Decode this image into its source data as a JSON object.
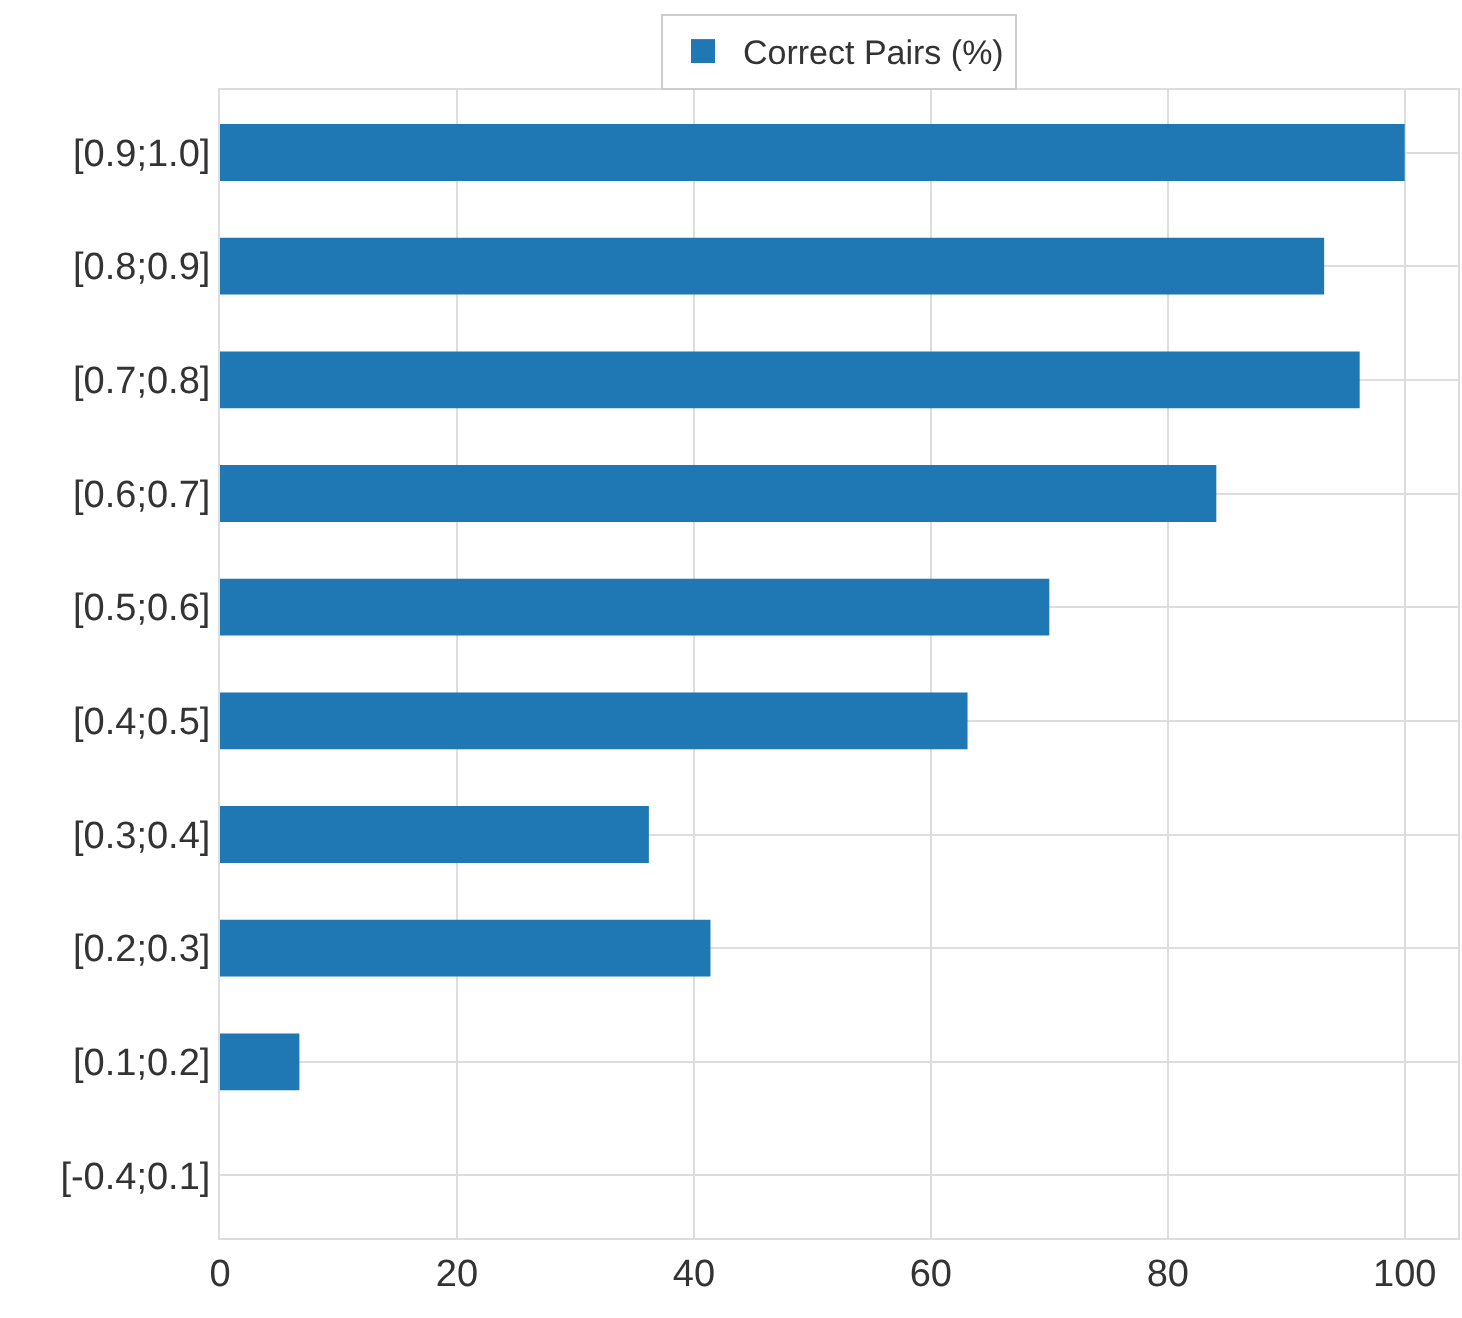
{
  "chart_data": {
    "type": "bar",
    "orientation": "horizontal",
    "categories": [
      "[0.9;1.0]",
      "[0.8;0.9]",
      "[0.7;0.8]",
      "[0.6;0.7]",
      "[0.5;0.6]",
      "[0.4;0.5]",
      "[0.3;0.4]",
      "[0.2;0.3]",
      "[0.1;0.2]",
      "[-0.4;0.1]"
    ],
    "series": [
      {
        "name": "Correct Pairs (%)",
        "color": "#1f77b4",
        "values": [
          100,
          93.2,
          96.2,
          84.1,
          70,
          63.1,
          36.2,
          41.4,
          6.7,
          0
        ]
      }
    ],
    "xlim": [
      0,
      104.5
    ],
    "xticks": [
      0,
      20,
      40,
      60,
      80,
      100
    ],
    "grid": true,
    "legend": "top"
  }
}
